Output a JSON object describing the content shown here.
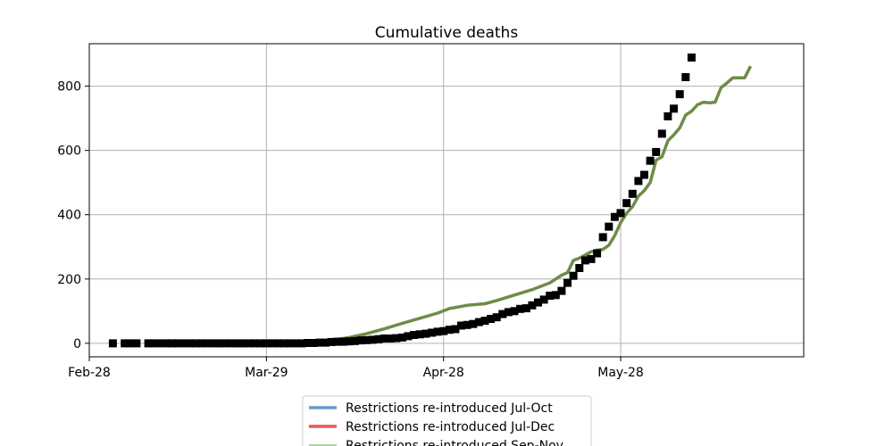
{
  "chart_data": {
    "type": "line",
    "title": "Cumulative deaths",
    "xlabel": "",
    "ylabel": "",
    "x_axis_type": "date",
    "xlim": [
      "2020-02-28",
      "2020-06-28"
    ],
    "ylim": [
      -42,
      932
    ],
    "x_ticks": [
      {
        "date": "2020-02-28",
        "label": "Feb-28"
      },
      {
        "date": "2020-03-29",
        "label": "Mar-29"
      },
      {
        "date": "2020-04-28",
        "label": "Apr-28"
      },
      {
        "date": "2020-05-28",
        "label": "May-28"
      }
    ],
    "y_ticks": [
      0,
      200,
      400,
      600,
      800
    ],
    "grid": true,
    "legend_position": "below",
    "series": [
      {
        "name": "Restrictions re-introduced Jul-Oct",
        "style": "line",
        "color": "#6a9bc7",
        "points": [
          [
            "2020-03-29",
            0
          ],
          [
            "2020-04-02",
            1
          ],
          [
            "2020-04-06",
            4
          ],
          [
            "2020-04-09",
            10
          ],
          [
            "2020-04-12",
            18
          ],
          [
            "2020-04-15",
            30
          ],
          [
            "2020-04-18",
            45
          ],
          [
            "2020-04-21",
            62
          ],
          [
            "2020-04-24",
            78
          ],
          [
            "2020-04-27",
            94
          ],
          [
            "2020-04-29",
            108
          ],
          [
            "2020-05-02",
            118
          ],
          [
            "2020-05-05",
            123
          ],
          [
            "2020-05-07",
            133
          ],
          [
            "2020-05-10",
            150
          ],
          [
            "2020-05-13",
            167
          ],
          [
            "2020-05-16",
            188
          ],
          [
            "2020-05-18",
            212
          ],
          [
            "2020-05-19",
            220
          ],
          [
            "2020-05-20",
            258
          ],
          [
            "2020-05-21",
            265
          ],
          [
            "2020-05-22",
            275
          ],
          [
            "2020-05-23",
            285
          ],
          [
            "2020-05-24",
            290
          ],
          [
            "2020-05-25",
            292
          ],
          [
            "2020-05-26",
            305
          ],
          [
            "2020-05-27",
            335
          ],
          [
            "2020-05-28",
            375
          ],
          [
            "2020-05-29",
            405
          ],
          [
            "2020-05-30",
            425
          ],
          [
            "2020-05-31",
            458
          ],
          [
            "2020-06-01",
            475
          ],
          [
            "2020-06-02",
            500
          ],
          [
            "2020-06-03",
            570
          ],
          [
            "2020-06-04",
            580
          ],
          [
            "2020-06-05",
            630
          ],
          [
            "2020-06-06",
            648
          ],
          [
            "2020-06-07",
            670
          ],
          [
            "2020-06-08",
            710
          ],
          [
            "2020-06-09",
            722
          ],
          [
            "2020-06-10",
            742
          ],
          [
            "2020-06-11",
            750
          ],
          [
            "2020-06-12",
            748
          ],
          [
            "2020-06-13",
            750
          ],
          [
            "2020-06-14",
            795
          ],
          [
            "2020-06-15",
            810
          ],
          [
            "2020-06-16",
            826
          ],
          [
            "2020-06-18",
            826
          ],
          [
            "2020-06-19",
            862
          ]
        ]
      },
      {
        "name": "Restrictions re-introduced Jul-Dec",
        "style": "line",
        "color": "#e8585a",
        "points": [
          [
            "2020-03-29",
            0
          ],
          [
            "2020-04-02",
            1
          ],
          [
            "2020-04-06",
            4
          ],
          [
            "2020-04-09",
            10
          ],
          [
            "2020-04-12",
            18
          ],
          [
            "2020-04-15",
            30
          ],
          [
            "2020-04-18",
            45
          ],
          [
            "2020-04-21",
            62
          ],
          [
            "2020-04-24",
            78
          ],
          [
            "2020-04-27",
            94
          ],
          [
            "2020-04-29",
            108
          ],
          [
            "2020-05-02",
            118
          ],
          [
            "2020-05-05",
            123
          ],
          [
            "2020-05-07",
            133
          ],
          [
            "2020-05-10",
            150
          ],
          [
            "2020-05-13",
            167
          ],
          [
            "2020-05-16",
            188
          ],
          [
            "2020-05-18",
            212
          ],
          [
            "2020-05-19",
            220
          ],
          [
            "2020-05-20",
            258
          ],
          [
            "2020-05-21",
            265
          ],
          [
            "2020-05-22",
            275
          ],
          [
            "2020-05-23",
            285
          ],
          [
            "2020-05-24",
            290
          ],
          [
            "2020-05-25",
            292
          ],
          [
            "2020-05-26",
            305
          ],
          [
            "2020-05-27",
            335
          ],
          [
            "2020-05-28",
            375
          ],
          [
            "2020-05-29",
            405
          ],
          [
            "2020-05-30",
            425
          ],
          [
            "2020-05-31",
            458
          ],
          [
            "2020-06-01",
            475
          ],
          [
            "2020-06-02",
            500
          ],
          [
            "2020-06-03",
            570
          ],
          [
            "2020-06-04",
            580
          ],
          [
            "2020-06-05",
            630
          ],
          [
            "2020-06-06",
            648
          ],
          [
            "2020-06-07",
            670
          ],
          [
            "2020-06-08",
            710
          ],
          [
            "2020-06-09",
            722
          ],
          [
            "2020-06-10",
            742
          ],
          [
            "2020-06-11",
            750
          ],
          [
            "2020-06-12",
            748
          ],
          [
            "2020-06-13",
            750
          ],
          [
            "2020-06-14",
            795
          ],
          [
            "2020-06-15",
            810
          ],
          [
            "2020-06-16",
            826
          ],
          [
            "2020-06-18",
            826
          ],
          [
            "2020-06-19",
            862
          ]
        ]
      },
      {
        "name": "Restrictions re-introduced Sep-Nov",
        "style": "line",
        "color": "#6e8c48",
        "points": [
          [
            "2020-03-29",
            0
          ],
          [
            "2020-04-02",
            1
          ],
          [
            "2020-04-06",
            4
          ],
          [
            "2020-04-09",
            10
          ],
          [
            "2020-04-12",
            18
          ],
          [
            "2020-04-15",
            30
          ],
          [
            "2020-04-18",
            45
          ],
          [
            "2020-04-21",
            62
          ],
          [
            "2020-04-24",
            78
          ],
          [
            "2020-04-27",
            94
          ],
          [
            "2020-04-29",
            108
          ],
          [
            "2020-05-02",
            118
          ],
          [
            "2020-05-05",
            123
          ],
          [
            "2020-05-07",
            133
          ],
          [
            "2020-05-10",
            150
          ],
          [
            "2020-05-13",
            167
          ],
          [
            "2020-05-16",
            188
          ],
          [
            "2020-05-18",
            212
          ],
          [
            "2020-05-19",
            220
          ],
          [
            "2020-05-20",
            258
          ],
          [
            "2020-05-21",
            265
          ],
          [
            "2020-05-22",
            275
          ],
          [
            "2020-05-23",
            285
          ],
          [
            "2020-05-24",
            290
          ],
          [
            "2020-05-25",
            292
          ],
          [
            "2020-05-26",
            305
          ],
          [
            "2020-05-27",
            335
          ],
          [
            "2020-05-28",
            375
          ],
          [
            "2020-05-29",
            405
          ],
          [
            "2020-05-30",
            425
          ],
          [
            "2020-05-31",
            458
          ],
          [
            "2020-06-01",
            475
          ],
          [
            "2020-06-02",
            500
          ],
          [
            "2020-06-03",
            570
          ],
          [
            "2020-06-04",
            580
          ],
          [
            "2020-06-05",
            630
          ],
          [
            "2020-06-06",
            648
          ],
          [
            "2020-06-07",
            670
          ],
          [
            "2020-06-08",
            710
          ],
          [
            "2020-06-09",
            722
          ],
          [
            "2020-06-10",
            742
          ],
          [
            "2020-06-11",
            750
          ],
          [
            "2020-06-12",
            748
          ],
          [
            "2020-06-13",
            750
          ],
          [
            "2020-06-14",
            795
          ],
          [
            "2020-06-15",
            810
          ],
          [
            "2020-06-16",
            826
          ],
          [
            "2020-06-18",
            826
          ],
          [
            "2020-06-19",
            862
          ]
        ]
      },
      {
        "style": "markers",
        "color": "#000000",
        "marker": "square",
        "points": [
          [
            "2020-03-03",
            0
          ],
          [
            "2020-03-05",
            0
          ],
          [
            "2020-03-06",
            0
          ],
          [
            "2020-03-07",
            0
          ],
          [
            "2020-03-09",
            0
          ],
          [
            "2020-03-10",
            0
          ],
          [
            "2020-03-11",
            0
          ],
          [
            "2020-03-12",
            0
          ],
          [
            "2020-03-13",
            0
          ],
          [
            "2020-03-14",
            0
          ],
          [
            "2020-03-15",
            0
          ],
          [
            "2020-03-16",
            0
          ],
          [
            "2020-03-17",
            0
          ],
          [
            "2020-03-18",
            0
          ],
          [
            "2020-03-19",
            0
          ],
          [
            "2020-03-20",
            0
          ],
          [
            "2020-03-21",
            0
          ],
          [
            "2020-03-22",
            0
          ],
          [
            "2020-03-23",
            0
          ],
          [
            "2020-03-24",
            0
          ],
          [
            "2020-03-25",
            0
          ],
          [
            "2020-03-26",
            0
          ],
          [
            "2020-03-27",
            0
          ],
          [
            "2020-03-28",
            0
          ],
          [
            "2020-03-29",
            0
          ],
          [
            "2020-03-30",
            0
          ],
          [
            "2020-03-31",
            0
          ],
          [
            "2020-04-01",
            0
          ],
          [
            "2020-04-02",
            0
          ],
          [
            "2020-04-03",
            0
          ],
          [
            "2020-04-04",
            0
          ],
          [
            "2020-04-05",
            1
          ],
          [
            "2020-04-06",
            1
          ],
          [
            "2020-04-07",
            2
          ],
          [
            "2020-04-08",
            2
          ],
          [
            "2020-04-09",
            4
          ],
          [
            "2020-04-10",
            5
          ],
          [
            "2020-04-11",
            5
          ],
          [
            "2020-04-12",
            6
          ],
          [
            "2020-04-13",
            7
          ],
          [
            "2020-04-14",
            9
          ],
          [
            "2020-04-15",
            10
          ],
          [
            "2020-04-16",
            11
          ],
          [
            "2020-04-17",
            13
          ],
          [
            "2020-04-18",
            15
          ],
          [
            "2020-04-19",
            15
          ],
          [
            "2020-04-20",
            16
          ],
          [
            "2020-04-21",
            18
          ],
          [
            "2020-04-22",
            22
          ],
          [
            "2020-04-23",
            26
          ],
          [
            "2020-04-24",
            28
          ],
          [
            "2020-04-25",
            30
          ],
          [
            "2020-04-26",
            33
          ],
          [
            "2020-04-27",
            36
          ],
          [
            "2020-04-28",
            38
          ],
          [
            "2020-04-29",
            42
          ],
          [
            "2020-04-30",
            44
          ],
          [
            "2020-05-01",
            55
          ],
          [
            "2020-05-02",
            57
          ],
          [
            "2020-05-03",
            60
          ],
          [
            "2020-05-04",
            66
          ],
          [
            "2020-05-05",
            70
          ],
          [
            "2020-05-06",
            76
          ],
          [
            "2020-05-07",
            81
          ],
          [
            "2020-05-08",
            91
          ],
          [
            "2020-05-09",
            97
          ],
          [
            "2020-05-10",
            100
          ],
          [
            "2020-05-11",
            107
          ],
          [
            "2020-05-12",
            109
          ],
          [
            "2020-05-13",
            118
          ],
          [
            "2020-05-14",
            127
          ],
          [
            "2020-05-15",
            136
          ],
          [
            "2020-05-16",
            148
          ],
          [
            "2020-05-17",
            150
          ],
          [
            "2020-05-18",
            163
          ],
          [
            "2020-05-19",
            188
          ],
          [
            "2020-05-20",
            210
          ],
          [
            "2020-05-21",
            234
          ],
          [
            "2020-05-22",
            258
          ],
          [
            "2020-05-23",
            262
          ],
          [
            "2020-05-24",
            280
          ],
          [
            "2020-05-25",
            330
          ],
          [
            "2020-05-26",
            363
          ],
          [
            "2020-05-27",
            393
          ],
          [
            "2020-05-28",
            405
          ],
          [
            "2020-05-29",
            436
          ],
          [
            "2020-05-30",
            465
          ],
          [
            "2020-05-31",
            505
          ],
          [
            "2020-06-01",
            524
          ],
          [
            "2020-06-02",
            568
          ],
          [
            "2020-06-03",
            595
          ],
          [
            "2020-06-04",
            652
          ],
          [
            "2020-06-05",
            706
          ],
          [
            "2020-06-06",
            730
          ],
          [
            "2020-06-07",
            775
          ],
          [
            "2020-06-08",
            828
          ],
          [
            "2020-06-09",
            889
          ]
        ]
      }
    ]
  }
}
